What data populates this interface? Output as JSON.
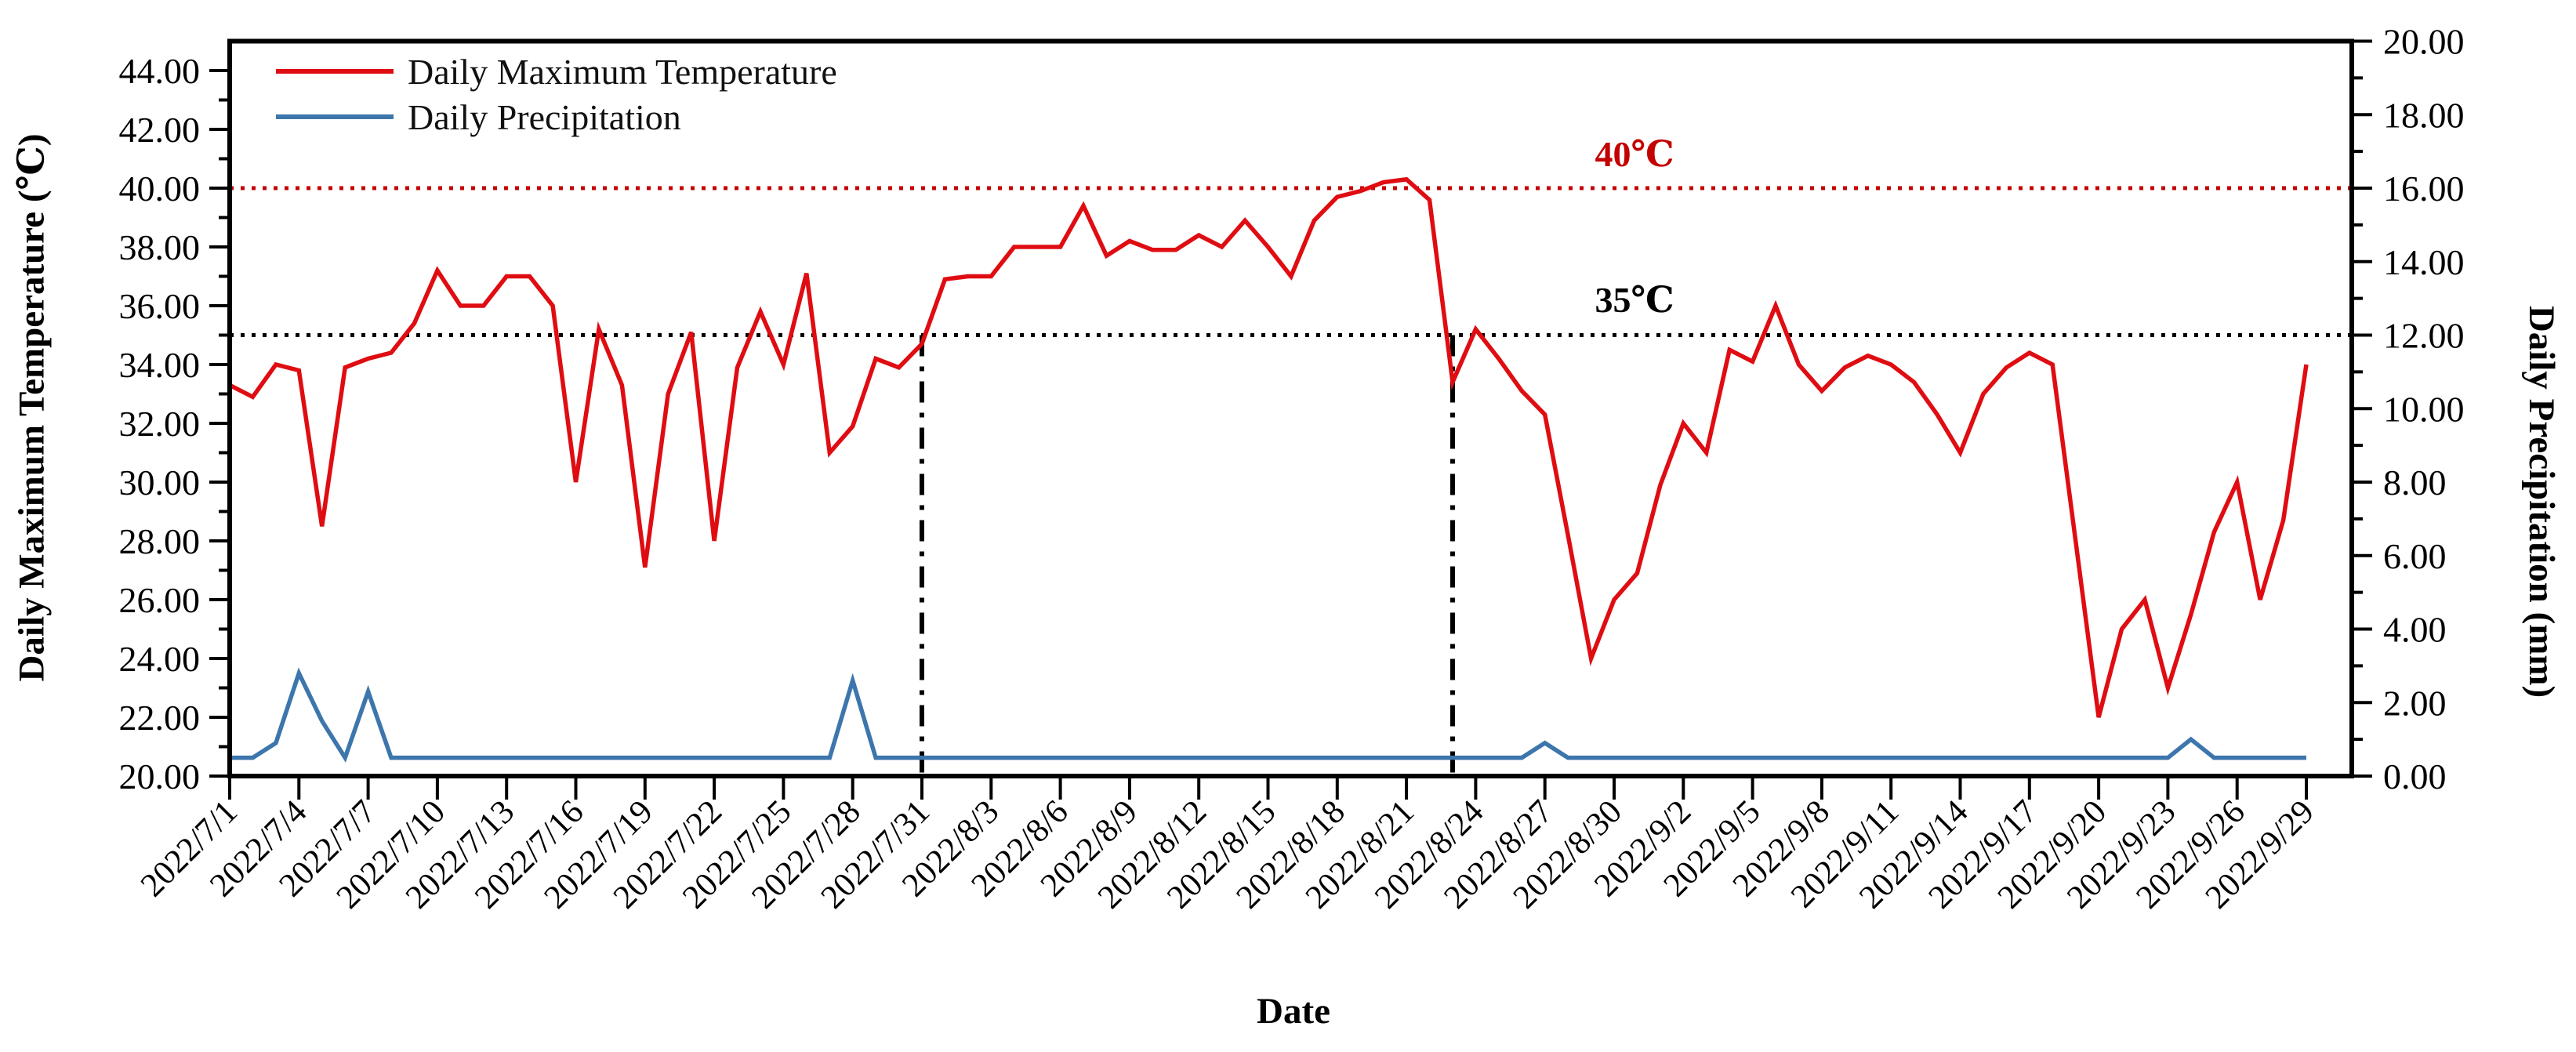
{
  "chart_data": {
    "type": "line",
    "title": "",
    "x_axis": {
      "label": "Date",
      "tick_every_days": 3,
      "dates": [
        "2022/7/1",
        "2022/7/2",
        "2022/7/3",
        "2022/7/4",
        "2022/7/5",
        "2022/7/6",
        "2022/7/7",
        "2022/7/8",
        "2022/7/9",
        "2022/7/10",
        "2022/7/11",
        "2022/7/12",
        "2022/7/13",
        "2022/7/14",
        "2022/7/15",
        "2022/7/16",
        "2022/7/17",
        "2022/7/18",
        "2022/7/19",
        "2022/7/20",
        "2022/7/21",
        "2022/7/22",
        "2022/7/23",
        "2022/7/24",
        "2022/7/25",
        "2022/7/26",
        "2022/7/27",
        "2022/7/28",
        "2022/7/29",
        "2022/7/30",
        "2022/7/31",
        "2022/8/1",
        "2022/8/2",
        "2022/8/3",
        "2022/8/4",
        "2022/8/5",
        "2022/8/6",
        "2022/8/7",
        "2022/8/8",
        "2022/8/9",
        "2022/8/10",
        "2022/8/11",
        "2022/8/12",
        "2022/8/13",
        "2022/8/14",
        "2022/8/15",
        "2022/8/16",
        "2022/8/17",
        "2022/8/18",
        "2022/8/19",
        "2022/8/20",
        "2022/8/21",
        "2022/8/22",
        "2022/8/23",
        "2022/8/24",
        "2022/8/25",
        "2022/8/26",
        "2022/8/27",
        "2022/8/28",
        "2022/8/29",
        "2022/8/30",
        "2022/8/31",
        "2022/9/1",
        "2022/9/2",
        "2022/9/3",
        "2022/9/4",
        "2022/9/5",
        "2022/9/6",
        "2022/9/7",
        "2022/9/8",
        "2022/9/9",
        "2022/9/10",
        "2022/9/11",
        "2022/9/12",
        "2022/9/13",
        "2022/9/14",
        "2022/9/15",
        "2022/9/16",
        "2022/9/17",
        "2022/9/18",
        "2022/9/19",
        "2022/9/20",
        "2022/9/21",
        "2022/9/22",
        "2022/9/23",
        "2022/9/24",
        "2022/9/25",
        "2022/9/26",
        "2022/9/27",
        "2022/9/28",
        "2022/9/29"
      ]
    },
    "y_left": {
      "label": "Daily Maximum Temperature (℃)",
      "min": 20,
      "max": 45,
      "major_step": 2,
      "minor_step": 1,
      "tick_labels": [
        "20.00",
        "22.00",
        "24.00",
        "26.00",
        "28.00",
        "30.00",
        "32.00",
        "34.00",
        "36.00",
        "38.00",
        "40.00",
        "42.00",
        "44.00"
      ]
    },
    "y_right": {
      "label": "Daily Precipitation (mm)",
      "min": 0,
      "max": 20,
      "major_step": 2,
      "minor_step": 1,
      "tick_labels": [
        "0.00",
        "2.00",
        "4.00",
        "6.00",
        "8.00",
        "10.00",
        "12.00",
        "14.00",
        "16.00",
        "18.00",
        "20.00"
      ]
    },
    "series": [
      {
        "name": "Daily Maximum Temperature",
        "axis": "left",
        "color": "#df0d12",
        "values": [
          33.3,
          32.9,
          34.0,
          33.8,
          28.5,
          33.9,
          34.2,
          34.4,
          35.4,
          37.2,
          36.0,
          36.0,
          37.0,
          37.0,
          36.0,
          30.0,
          35.2,
          33.3,
          27.1,
          33.0,
          35.1,
          28.0,
          33.9,
          35.8,
          34.0,
          37.1,
          31.0,
          31.9,
          34.2,
          33.9,
          34.7,
          36.9,
          37.0,
          37.0,
          38.0,
          38.0,
          38.0,
          39.4,
          37.7,
          38.2,
          37.9,
          37.9,
          38.4,
          38.0,
          38.9,
          38.0,
          37.0,
          38.9,
          39.7,
          39.9,
          40.2,
          40.3,
          39.6,
          33.4,
          35.2,
          34.2,
          33.1,
          32.3,
          28.2,
          24.0,
          26.0,
          26.9,
          29.9,
          32.0,
          31.0,
          34.5,
          34.1,
          36.0,
          34.0,
          33.1,
          33.9,
          34.3,
          34.0,
          33.4,
          32.3,
          31.0,
          33.0,
          33.9,
          34.4,
          34.0,
          28.0,
          22.0,
          25.0,
          26.0,
          23.0,
          25.5,
          28.3,
          30.0,
          26.0,
          28.7,
          34.0
        ]
      },
      {
        "name": "Daily Precipitation",
        "axis": "right",
        "color": "#3c76ac",
        "values": [
          0.5,
          0.5,
          0.9,
          2.8,
          1.5,
          0.5,
          2.3,
          0.5,
          0.5,
          0.5,
          0.5,
          0.5,
          0.5,
          0.5,
          0.5,
          0.5,
          0.5,
          0.5,
          0.5,
          0.5,
          0.5,
          0.5,
          0.5,
          0.5,
          0.5,
          0.5,
          0.5,
          2.6,
          0.5,
          0.5,
          0.5,
          0.5,
          0.5,
          0.5,
          0.5,
          0.5,
          0.5,
          0.5,
          0.5,
          0.5,
          0.5,
          0.5,
          0.5,
          0.5,
          0.5,
          0.5,
          0.5,
          0.5,
          0.5,
          0.5,
          0.5,
          0.5,
          0.5,
          0.5,
          0.5,
          0.5,
          0.5,
          0.9,
          0.5,
          0.5,
          0.5,
          0.5,
          0.5,
          0.5,
          0.5,
          0.5,
          0.5,
          0.5,
          0.5,
          0.5,
          0.5,
          0.5,
          0.5,
          0.5,
          0.5,
          0.5,
          0.5,
          0.5,
          0.5,
          0.5,
          0.5,
          0.5,
          0.5,
          0.5,
          0.5,
          1.0,
          0.5,
          0.5,
          0.5,
          0.5,
          0.5
        ]
      }
    ],
    "reference_lines": [
      {
        "axis": "left",
        "value": 40,
        "label": "40℃",
        "color": "#c40000",
        "style": "dotted"
      },
      {
        "axis": "left",
        "value": 35,
        "label": "35℃",
        "color": "#000000",
        "style": "dotted"
      }
    ],
    "event_lines": [
      {
        "date": "2022/7/31",
        "style": "dash-dot",
        "color": "#000000"
      },
      {
        "date": "2022/8/23",
        "style": "dash-dot",
        "color": "#000000"
      }
    ],
    "legend": {
      "items": [
        {
          "label": "Daily Maximum Temperature",
          "color": "#df0d12"
        },
        {
          "label": "Daily Precipitation",
          "color": "#3c76ac"
        }
      ]
    }
  }
}
